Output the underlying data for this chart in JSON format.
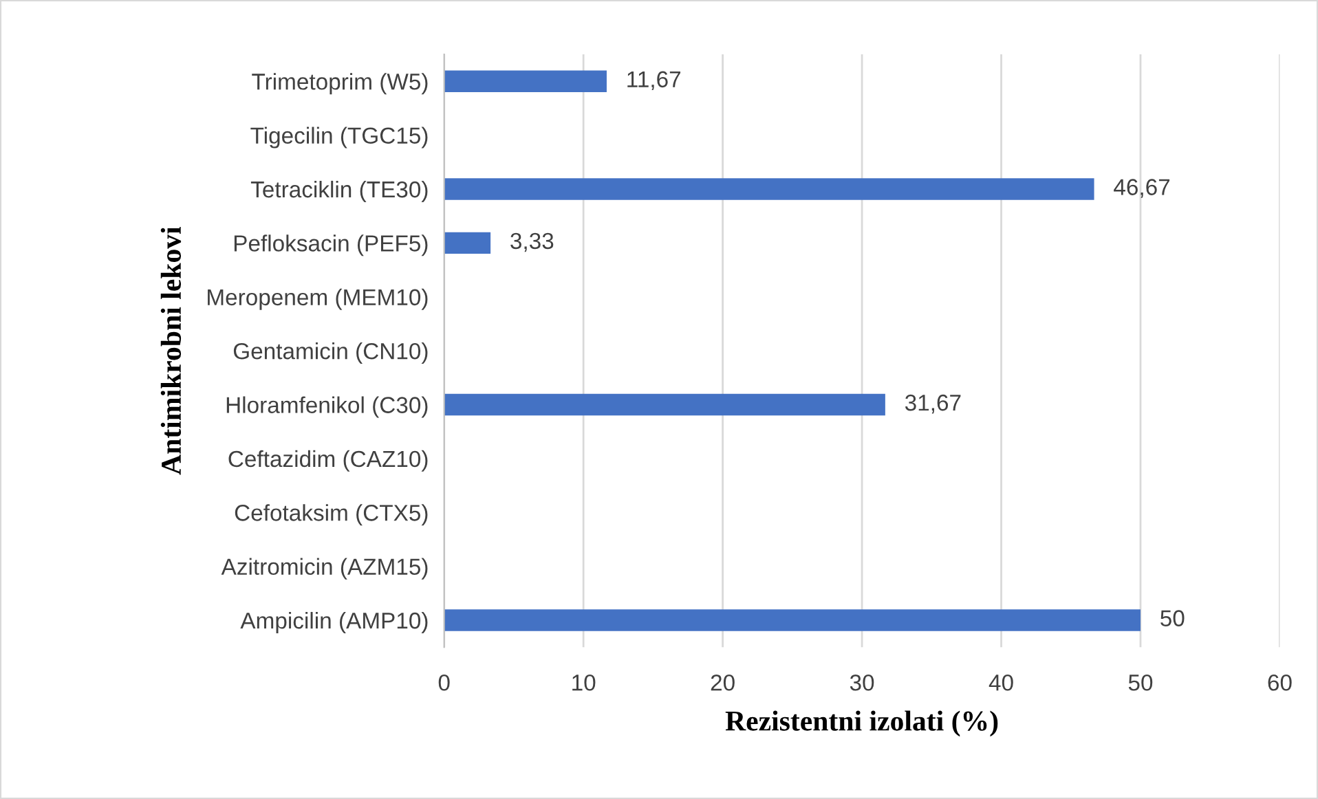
{
  "chart_data": {
    "type": "bar",
    "orientation": "horizontal",
    "xlabel": "Rezistentni izolati (%)",
    "ylabel": "Antimikrobni lekovi",
    "categories": [
      "Trimetoprim (W5)",
      "Tigecilin (TGC15)",
      "Tetraciklin (TE30)",
      "Pefloksacin (PEF5)",
      "Meropenem (MEM10)",
      "Gentamicin (CN10)",
      "Hloramfenikol (C30)",
      "Ceftazidim (CAZ10)",
      "Cefotaksim (CTX5)",
      "Azitromicin (AZM15)",
      "Ampicilin (AMP10)"
    ],
    "values": [
      11.67,
      0,
      46.67,
      3.33,
      0,
      0,
      31.67,
      0,
      0,
      0,
      50
    ],
    "value_labels": [
      "11,67",
      null,
      "46,67",
      "3,33",
      null,
      null,
      "31,67",
      null,
      null,
      null,
      "50"
    ],
    "color": "#4472c4",
    "xlim": [
      0,
      60
    ],
    "xticks": [
      0,
      10,
      20,
      30,
      40,
      50,
      60
    ],
    "grid": "x"
  }
}
